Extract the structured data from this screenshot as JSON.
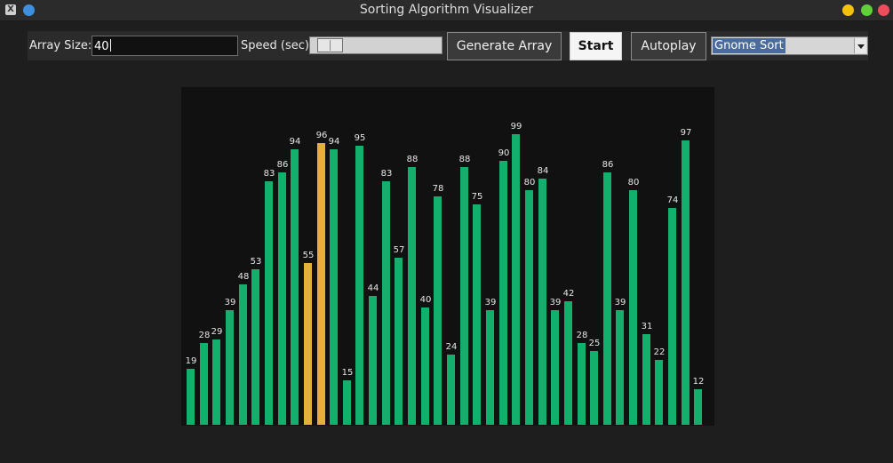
{
  "window": {
    "title": "Sorting Algorithm Visualizer",
    "app_icon_glyph": "X"
  },
  "toolbar": {
    "array_size_label": "Array Size:",
    "array_size_value": "40",
    "speed_label": "Speed (sec):",
    "speed_fraction": 0.05,
    "generate_label": "Generate Array",
    "start_label": "Start",
    "autoplay_label": "Autoplay",
    "algorithm_selected": "Gnome Sort"
  },
  "colors": {
    "bar_default": "#12b06c",
    "bar_highlight": "#e2b237",
    "canvas_bg": "#111111"
  },
  "chart_data": {
    "type": "bar",
    "values": [
      19,
      28,
      29,
      39,
      48,
      53,
      83,
      86,
      94,
      55,
      96,
      94,
      15,
      95,
      44,
      83,
      57,
      88,
      40,
      78,
      24,
      88,
      75,
      39,
      90,
      99,
      80,
      84,
      39,
      42,
      28,
      25,
      86,
      39,
      80,
      31,
      22,
      74,
      97,
      12
    ],
    "highlighted_indices": [
      9,
      10
    ],
    "ylim": [
      0,
      100
    ]
  }
}
